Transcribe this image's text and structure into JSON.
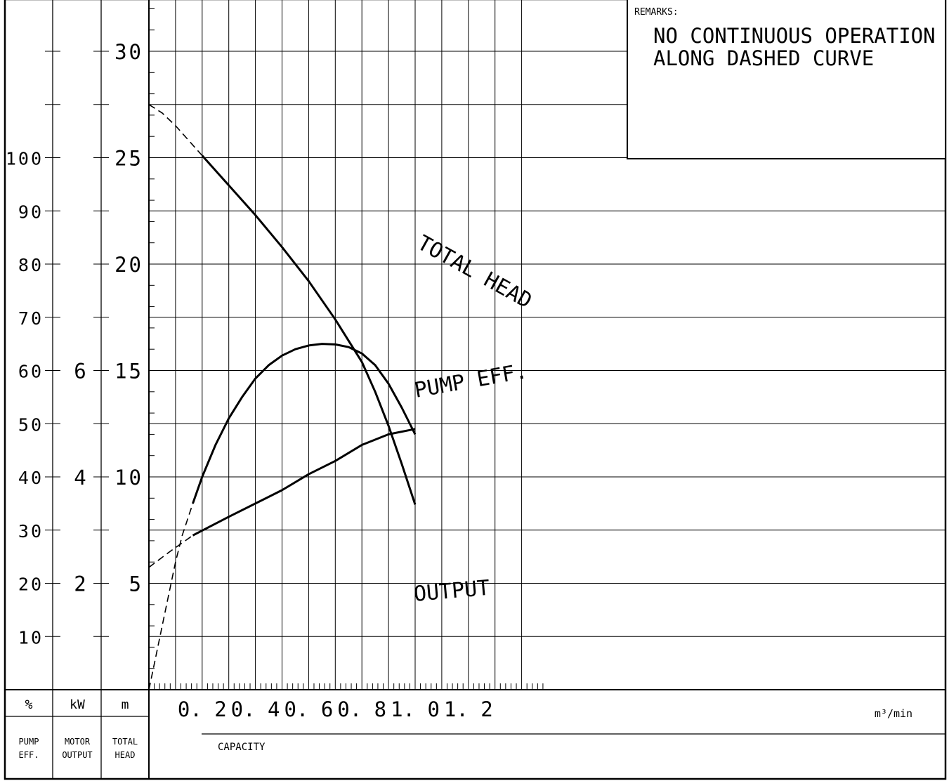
{
  "remarks": {
    "heading": "REMARKS:",
    "line1": "NO CONTINUOUS OPERATION",
    "line2": "ALONG DASHED CURVE"
  },
  "footer": {
    "eff_unit": "%",
    "motor_unit": "kW",
    "head_unit": "m",
    "eff_label_1": "PUMP",
    "eff_label_2": "EFF.",
    "motor_label_1": "MOTOR",
    "motor_label_2": "OUTPUT",
    "head_label_1": "TOTAL",
    "head_label_2": "HEAD",
    "capacity_label": "CAPACITY",
    "capacity_unit": "m³/min"
  },
  "chart_data": {
    "type": "line",
    "x_axis": {
      "label": "CAPACITY",
      "unit": "m³/min",
      "range": [
        0,
        1.5
      ],
      "ticks": [
        0.2,
        0.4,
        0.6,
        0.8,
        1.0,
        1.2
      ],
      "tick_labels": [
        "0. 2",
        "0. 4",
        "0. 6",
        "0. 8",
        "1. 0",
        "1. 2"
      ]
    },
    "axes": {
      "total_head": {
        "label": "TOTAL HEAD",
        "unit": "m",
        "range": [
          0,
          32.5
        ],
        "ticks": [
          5,
          10,
          15,
          20,
          25,
          30
        ]
      },
      "pump_eff": {
        "label": "PUMP EFF.",
        "unit": "%",
        "range": [
          0,
          130
        ],
        "ticks": [
          10,
          20,
          30,
          40,
          50,
          60,
          70,
          80,
          90,
          100
        ]
      },
      "motor_output": {
        "label": "MOTOR OUTPUT",
        "unit": "kW",
        "range": [
          0,
          13
        ],
        "ticks": [
          2,
          4,
          6
        ]
      }
    },
    "grid": true,
    "series": [
      {
        "name": "TOTAL HEAD",
        "axis": "total_head",
        "dashed": {
          "x": [
            0.0,
            0.05,
            0.1,
            0.15,
            0.2
          ],
          "y": [
            27.5,
            27.1,
            26.5,
            25.8,
            25.1
          ]
        },
        "solid": {
          "x": [
            0.2,
            0.3,
            0.4,
            0.5,
            0.6,
            0.7,
            0.8,
            0.85,
            0.9,
            0.95,
            1.0
          ],
          "y": [
            25.1,
            23.7,
            22.3,
            20.8,
            19.2,
            17.4,
            15.4,
            14.0,
            12.4,
            10.6,
            8.7
          ]
        },
        "label_text": "TOTAL HEAD"
      },
      {
        "name": "PUMP EFF.",
        "axis": "pump_eff",
        "dashed": {
          "x": [
            0.0,
            0.025,
            0.05,
            0.075,
            0.1,
            0.125,
            0.165
          ],
          "y": [
            0,
            6,
            12,
            18,
            24,
            29,
            35
          ]
        },
        "solid": {
          "x": [
            0.165,
            0.2,
            0.25,
            0.3,
            0.35,
            0.4,
            0.45,
            0.5,
            0.55,
            0.6,
            0.65,
            0.7,
            0.75,
            0.8,
            0.85,
            0.9,
            0.95,
            1.0
          ],
          "y": [
            35,
            40,
            46,
            51,
            55,
            58.5,
            61,
            62.8,
            64,
            64.7,
            65,
            64.9,
            64.4,
            63.2,
            61,
            57.5,
            53,
            48
          ]
        },
        "label_text": "PUMP EFF."
      },
      {
        "name": "OUTPUT",
        "axis": "motor_output",
        "dashed": {
          "x": [
            0.0,
            0.08,
            0.165
          ],
          "y": [
            2.3,
            2.6,
            2.9
          ]
        },
        "solid": {
          "x": [
            0.165,
            0.3,
            0.4,
            0.5,
            0.6,
            0.7,
            0.8,
            0.9,
            1.0
          ],
          "y": [
            2.9,
            3.25,
            3.5,
            3.75,
            4.05,
            4.3,
            4.6,
            4.8,
            4.9
          ]
        },
        "label_text": "OUTPUT"
      }
    ]
  }
}
